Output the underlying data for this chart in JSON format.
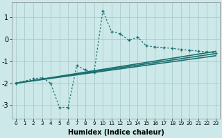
{
  "xlabel": "Humidex (Indice chaleur)",
  "bg_color": "#cce8e8",
  "grid_color": "#aacccc",
  "line_color": "#1a7070",
  "xlim": [
    -0.5,
    23.5
  ],
  "ylim": [
    -3.6,
    1.7
  ],
  "xticks": [
    0,
    1,
    2,
    3,
    4,
    5,
    6,
    7,
    8,
    9,
    10,
    11,
    12,
    13,
    14,
    15,
    16,
    17,
    18,
    19,
    20,
    21,
    22,
    23
  ],
  "yticks": [
    -3,
    -2,
    -1,
    0,
    1
  ],
  "line1_x": [
    0,
    23
  ],
  "line1_y": [
    -2.0,
    -0.55
  ],
  "line2_x": [
    0,
    23
  ],
  "line2_y": [
    -2.0,
    -0.65
  ],
  "line3_x": [
    0,
    23
  ],
  "line3_y": [
    -2.0,
    -0.75
  ],
  "dotted_x": [
    0,
    2,
    3,
    4,
    5,
    6,
    7,
    8,
    9,
    10,
    11,
    12,
    13,
    14,
    15,
    16,
    17,
    18,
    19,
    20,
    21,
    22,
    23
  ],
  "dotted_y": [
    -2.0,
    -1.8,
    -1.75,
    -2.0,
    -3.1,
    -3.1,
    -1.2,
    -1.4,
    -1.5,
    1.3,
    0.35,
    0.25,
    -0.05,
    0.1,
    -0.3,
    -0.35,
    -0.38,
    -0.42,
    -0.46,
    -0.5,
    -0.54,
    -0.58,
    -0.62
  ]
}
